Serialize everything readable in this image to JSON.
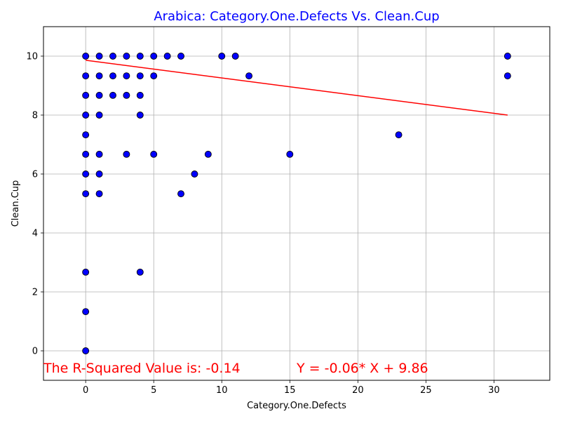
{
  "chart_data": {
    "type": "scatter",
    "title": "Arabica: Category.One.Defects Vs. Clean.Cup",
    "title_color": "#0000ff",
    "xlabel": "Category.One.Defects",
    "ylabel": "Clean.Cup",
    "xlim": [
      -3.1,
      34.1
    ],
    "ylim": [
      -1,
      11
    ],
    "xticks": [
      0,
      5,
      10,
      15,
      20,
      25,
      30
    ],
    "yticks": [
      0,
      2,
      4,
      6,
      8,
      10
    ],
    "grid": true,
    "point_color": "#0000ff",
    "point_edge_color": "#000000",
    "points": [
      [
        0,
        10
      ],
      [
        0,
        9.33
      ],
      [
        0,
        8.67
      ],
      [
        0,
        8
      ],
      [
        0,
        7.33
      ],
      [
        0,
        6.67
      ],
      [
        0,
        6
      ],
      [
        0,
        5.33
      ],
      [
        0,
        2.67
      ],
      [
        0,
        1.33
      ],
      [
        0,
        0
      ],
      [
        1,
        10
      ],
      [
        1,
        9.33
      ],
      [
        1,
        8.67
      ],
      [
        1,
        8
      ],
      [
        1,
        6.67
      ],
      [
        1,
        6
      ],
      [
        1,
        5.33
      ],
      [
        2,
        10
      ],
      [
        2,
        9.33
      ],
      [
        2,
        8.67
      ],
      [
        3,
        10
      ],
      [
        3,
        9.33
      ],
      [
        3,
        8.67
      ],
      [
        3,
        6.67
      ],
      [
        4,
        10
      ],
      [
        4,
        9.33
      ],
      [
        4,
        8.67
      ],
      [
        4,
        8
      ],
      [
        4,
        2.67
      ],
      [
        5,
        10
      ],
      [
        5,
        9.33
      ],
      [
        5,
        6.67
      ],
      [
        6,
        10
      ],
      [
        7,
        10
      ],
      [
        7,
        5.33
      ],
      [
        8,
        6
      ],
      [
        9,
        6.67
      ],
      [
        10,
        10
      ],
      [
        11,
        10
      ],
      [
        12,
        9.33
      ],
      [
        15,
        6.67
      ],
      [
        23,
        7.33
      ],
      [
        31,
        10
      ],
      [
        31,
        9.33
      ]
    ],
    "regression": {
      "slope": -0.06,
      "intercept": 9.86,
      "x_range": [
        0,
        31
      ],
      "color": "#ff0000"
    },
    "annotations": [
      {
        "text": "The R-Squared Value is: -0.14",
        "x": -3.1,
        "y": -0.6,
        "color": "#ff0000"
      },
      {
        "text": "Y = -0.06* X + 9.86",
        "x": 15.5,
        "y": -0.6,
        "color": "#ff0000"
      }
    ]
  }
}
